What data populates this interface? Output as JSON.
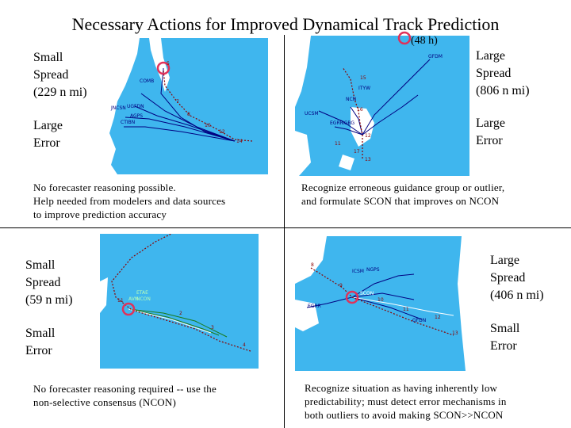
{
  "title": "Necessary Actions for Improved Dynamical Track Prediction",
  "colors": {
    "ocean": "#3fb6ee",
    "land": "#ffffff",
    "circle": "#e0325a",
    "track": "#8b0000"
  },
  "panels": {
    "top_left": {
      "spread_label": "Small\nSpread\n(229 n mi)",
      "error_label": "Large\nError",
      "note": "No forecaster reasoning possible.\nHelp needed from modelers and data sources\nto improve prediction accuracy",
      "models": [
        "COMB",
        "UGFDN",
        "JNCSN",
        "CTIBN",
        "AGPS"
      ],
      "positions": [
        "5",
        "7",
        "8",
        "10",
        "12",
        "14"
      ]
    },
    "top_right": {
      "time_label": "(48 h)",
      "spread_label": "Large\nSpread\n(806 n mi)",
      "error_label": "Large\nError",
      "note": "Recognize erroneous  guidance group or outlier,\nand formulate SCON that improves on NCON",
      "models": [
        "GFDM",
        "ITYW",
        "NCN",
        "UCSM",
        "EGRR",
        "IGBG"
      ],
      "positions": [
        "11",
        "12",
        "13",
        "15",
        "16",
        "17"
      ]
    },
    "bottom_left": {
      "spread_label": "Small\nSpread\n(59 n mi)",
      "error_label": "Small\nError",
      "note": "No forecaster reasoning required -- use the\nnon-selective consensus (NCON)",
      "models": [
        "ETAE",
        "NCON",
        "AVN"
      ],
      "positions": [
        "11",
        "2",
        "3",
        "4"
      ]
    },
    "bottom_right": {
      "spread_label": "Large\nSpread\n(406 n mi)",
      "error_label": "Small\nError",
      "note": "Recognize situation as having inherently low\npredictability; must detect error mechanisms in\nboth outliers to avoid making SCON>>NCON",
      "models": [
        "ICSM",
        "NGPS",
        "SCON",
        "EGRR",
        "GFDN"
      ],
      "positions": [
        "8",
        "9",
        "10",
        "11",
        "12",
        "13"
      ]
    }
  }
}
